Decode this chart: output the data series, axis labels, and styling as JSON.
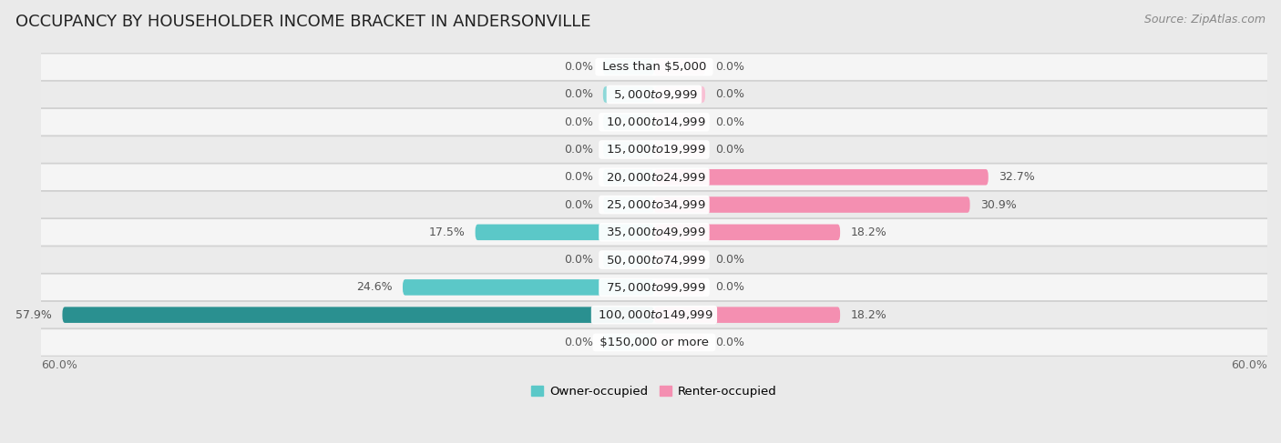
{
  "title": "OCCUPANCY BY HOUSEHOLDER INCOME BRACKET IN ANDERSONVILLE",
  "source": "Source: ZipAtlas.com",
  "categories": [
    "Less than $5,000",
    "$5,000 to $9,999",
    "$10,000 to $14,999",
    "$15,000 to $19,999",
    "$20,000 to $24,999",
    "$25,000 to $34,999",
    "$35,000 to $49,999",
    "$50,000 to $74,999",
    "$75,000 to $99,999",
    "$100,000 to $149,999",
    "$150,000 or more"
  ],
  "owner_values": [
    0.0,
    0.0,
    0.0,
    0.0,
    0.0,
    0.0,
    17.5,
    0.0,
    24.6,
    57.9,
    0.0
  ],
  "renter_values": [
    0.0,
    0.0,
    0.0,
    0.0,
    32.7,
    30.9,
    18.2,
    0.0,
    0.0,
    18.2,
    0.0
  ],
  "owner_color": "#5bc8c8",
  "owner_color_light": "#8dd8d8",
  "owner_color_dark": "#2a9090",
  "renter_color": "#f48fb1",
  "renter_color_light": "#f8c0d4",
  "background_color": "#eaeaea",
  "row_color_odd": "#f2f2f2",
  "row_color_even": "#e8e8e8",
  "xlim": 60.0,
  "min_bar": 5.0,
  "title_fontsize": 13,
  "source_fontsize": 9,
  "label_fontsize": 9,
  "category_fontsize": 9.5
}
